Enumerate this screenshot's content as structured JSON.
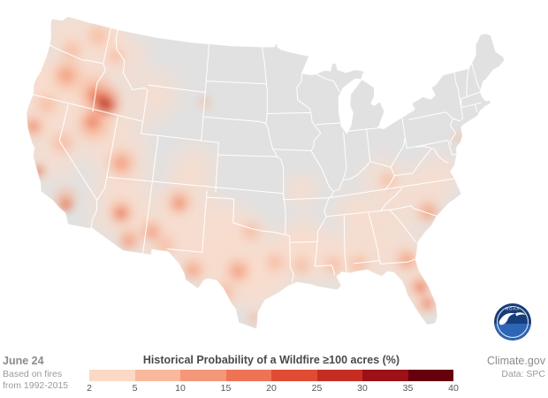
{
  "footer": {
    "date_label": "June 24",
    "source_line1": "Based on fires",
    "source_line2": "from 1992-2015",
    "credit_site": "Climate.gov",
    "credit_data": "Data: SPC"
  },
  "legend": {
    "title": "Historical Probability of a Wildfire ≥100 acres (%)",
    "ticks": [
      "2",
      "5",
      "10",
      "15",
      "20",
      "25",
      "30",
      "35",
      "40"
    ],
    "colors": [
      "#fcd9c4",
      "#f9b89c",
      "#f49778",
      "#ee7355",
      "#e04b34",
      "#c62d22",
      "#9c1016",
      "#67000d"
    ]
  },
  "map": {
    "background_color": "#ffffff",
    "land_color": "#e1e1e1",
    "state_border_color": "#ffffff",
    "noaa_logo": {
      "label": "NOAA",
      "circle_color": "#173d7a",
      "wave_color": "#2e66b5"
    },
    "hotspots": {
      "levels": [
        {
          "color": "#fbdccb",
          "opacity": 0.8
        },
        {
          "color": "#f7b698",
          "opacity": 0.85
        },
        {
          "color": "#f19272",
          "opacity": 0.88
        },
        {
          "color": "#e96a47",
          "opacity": 0.9
        },
        {
          "color": "#ce3423",
          "opacity": 0.92
        },
        {
          "color": "#6e0410",
          "opacity": 0.95
        }
      ],
      "points": [
        [
          -122.5,
          47.6,
          38,
          1
        ],
        [
          -118.7,
          47.6,
          40,
          1
        ],
        [
          -114.5,
          47.0,
          34,
          1
        ],
        [
          -116.8,
          48.0,
          26,
          1
        ],
        [
          -120.9,
          44.5,
          42,
          1
        ],
        [
          -117.5,
          44.0,
          48,
          1
        ],
        [
          -123.2,
          42.6,
          36,
          1
        ],
        [
          -124.0,
          43.5,
          28,
          1
        ],
        [
          -122.6,
          40.3,
          38,
          1
        ],
        [
          -120.3,
          37.6,
          40,
          1
        ],
        [
          -118.2,
          41.2,
          52,
          1
        ],
        [
          -114.2,
          40.6,
          52,
          1
        ],
        [
          -112.4,
          37.6,
          46,
          1
        ],
        [
          -110.3,
          44.3,
          40,
          1
        ],
        [
          -112.2,
          34.6,
          46,
          1
        ],
        [
          -108.2,
          33.6,
          50,
          1
        ],
        [
          -105.2,
          36.0,
          42,
          1
        ],
        [
          -104.6,
          32.6,
          42,
          1
        ],
        [
          -104.8,
          38.7,
          36,
          1
        ],
        [
          -102.2,
          31.2,
          42,
          1
        ],
        [
          -99.6,
          30.6,
          46,
          1
        ],
        [
          -97.2,
          29.2,
          42,
          1
        ],
        [
          -99.2,
          33.6,
          42,
          1
        ],
        [
          -101.6,
          34.6,
          38,
          1
        ],
        [
          -96.2,
          31.6,
          42,
          1
        ],
        [
          -93.2,
          31.6,
          42,
          1
        ],
        [
          -92.6,
          33.2,
          36,
          1
        ],
        [
          -92.6,
          37.2,
          26,
          1
        ],
        [
          -89.6,
          31.6,
          42,
          1
        ],
        [
          -87.2,
          35.2,
          30,
          1
        ],
        [
          -86.6,
          31.6,
          42,
          1
        ],
        [
          -84.6,
          34.2,
          40,
          1
        ],
        [
          -82.6,
          31.2,
          42,
          1
        ],
        [
          -81.3,
          28.1,
          40,
          1
        ],
        [
          -80.6,
          35.6,
          44,
          1
        ],
        [
          -77.6,
          37.0,
          36,
          1
        ],
        [
          -83.6,
          37.6,
          34,
          1
        ],
        [
          -120.9,
          44.3,
          22,
          2
        ],
        [
          -118.4,
          48.1,
          15,
          2
        ],
        [
          -121.2,
          46.4,
          14,
          2
        ],
        [
          -117.3,
          43.6,
          24,
          2
        ],
        [
          -116.6,
          41.0,
          24,
          2
        ],
        [
          -112.7,
          38.4,
          20,
          2
        ],
        [
          -119.6,
          38.9,
          16,
          2
        ],
        [
          -123.2,
          39.5,
          16,
          2
        ],
        [
          -122.4,
          41.6,
          15,
          2
        ],
        [
          -117.9,
          34.6,
          16,
          2
        ],
        [
          -111.9,
          34.4,
          18,
          2
        ],
        [
          -110.6,
          32.3,
          16,
          2
        ],
        [
          -108.5,
          33.3,
          16,
          2
        ],
        [
          -105.9,
          35.9,
          18,
          2
        ],
        [
          -106.9,
          32.3,
          14,
          2
        ],
        [
          -103.8,
          30.5,
          16,
          2
        ],
        [
          -100.6,
          28.8,
          16,
          2
        ],
        [
          -99.3,
          30.7,
          18,
          2
        ],
        [
          -98.1,
          33.9,
          14,
          2
        ],
        [
          -97.6,
          26.8,
          10,
          2
        ],
        [
          -95.6,
          31.4,
          14,
          2
        ],
        [
          -92.9,
          31.1,
          13,
          2
        ],
        [
          -89.7,
          31.0,
          13,
          2
        ],
        [
          -87.1,
          30.9,
          14,
          2
        ],
        [
          -82.3,
          30.8,
          16,
          2
        ],
        [
          -81.4,
          28.5,
          14,
          2
        ],
        [
          -80.9,
          26.9,
          13,
          2
        ],
        [
          -79.4,
          34.4,
          16,
          2
        ],
        [
          -83.1,
          37.4,
          12,
          2
        ],
        [
          -74.5,
          39.7,
          8,
          2
        ],
        [
          -104.0,
          44.2,
          9,
          2
        ],
        [
          -115.6,
          46.8,
          12,
          2
        ],
        [
          -115.9,
          43.0,
          22,
          3
        ],
        [
          -117.3,
          43.3,
          12,
          3
        ],
        [
          -116.8,
          41.1,
          13,
          3
        ],
        [
          -121.1,
          44.3,
          11,
          3
        ],
        [
          -112.8,
          38.3,
          11,
          3
        ],
        [
          -123.3,
          39.5,
          9,
          3
        ],
        [
          -111.9,
          34.35,
          11,
          3
        ],
        [
          -105.9,
          35.8,
          10,
          3
        ],
        [
          -108.4,
          33.2,
          9,
          3
        ],
        [
          -99.3,
          30.6,
          10,
          3
        ],
        [
          -82.2,
          30.7,
          9,
          3
        ],
        [
          -81.3,
          28.4,
          9,
          3
        ],
        [
          -80.9,
          26.95,
          8,
          3
        ],
        [
          -79.2,
          34.3,
          9,
          3
        ],
        [
          -103.9,
          30.5,
          8,
          3
        ],
        [
          -117.8,
          34.1,
          10,
          3
        ],
        [
          -121.4,
          36.2,
          9,
          3
        ],
        [
          -110.7,
          32.2,
          9,
          3
        ],
        [
          -115.85,
          42.85,
          14,
          4
        ],
        [
          -121.45,
          36.15,
          6.5,
          4
        ],
        [
          -117.75,
          34.05,
          7,
          4
        ],
        [
          -111.9,
          34.3,
          6.5,
          4
        ],
        [
          -116.85,
          41.15,
          7,
          4
        ],
        [
          -117.3,
          43.4,
          7,
          4
        ],
        [
          -81.25,
          28.3,
          6.5,
          4
        ],
        [
          -80.9,
          27.0,
          5.5,
          4
        ],
        [
          -123.3,
          39.5,
          5,
          4
        ],
        [
          -105.9,
          35.75,
          5,
          4
        ],
        [
          -115.8,
          42.8,
          9,
          5
        ],
        [
          -116.4,
          43.1,
          5,
          5
        ],
        [
          -114.9,
          42.6,
          5,
          5
        ],
        [
          -121.5,
          36.1,
          4,
          5
        ],
        [
          -117.7,
          34.05,
          4,
          5
        ],
        [
          -111.9,
          34.3,
          3.5,
          5
        ],
        [
          -81.2,
          28.25,
          3.5,
          5
        ],
        [
          -80.85,
          27.0,
          3,
          5
        ],
        [
          -115.75,
          42.75,
          5.5,
          6
        ],
        [
          -116.3,
          43.05,
          3,
          6
        ],
        [
          -121.5,
          36.08,
          2.4,
          6
        ],
        [
          -117.7,
          34.03,
          2.2,
          6
        ]
      ]
    }
  }
}
